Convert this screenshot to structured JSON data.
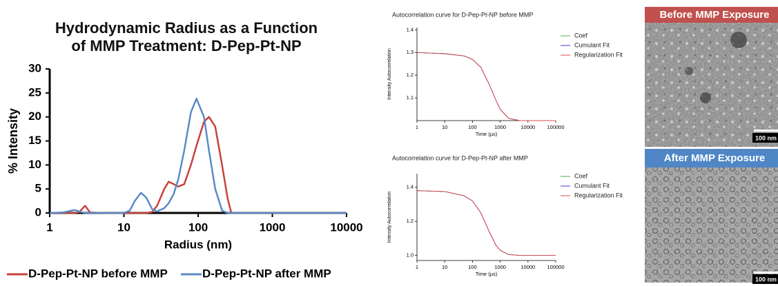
{
  "chart_data": [
    {
      "type": "line",
      "title": "Hydrodynamic Radius as a Function of MMP Treatment: D-Pep-Pt-NP",
      "xlabel": "Radius (nm)",
      "ylabel": "% Intensity",
      "xscale": "log",
      "legend": "bottom",
      "x": [
        1,
        1.5,
        2,
        2.2,
        2.5,
        3,
        3.5,
        5,
        10,
        12,
        14,
        17,
        20,
        24,
        28,
        35,
        40,
        47,
        54,
        65,
        80,
        95,
        120,
        140,
        170,
        210,
        250,
        280,
        400,
        1000,
        10000
      ],
      "series": [
        {
          "name": "D-Pep-Pt-NP before MMP",
          "color": "#c8413c",
          "values": [
            0,
            0,
            0,
            0,
            0.2,
            1.5,
            0.1,
            0,
            0,
            0,
            0,
            0,
            0,
            0.2,
            1.5,
            5,
            6.5,
            6,
            5.5,
            6,
            10,
            14,
            19,
            20,
            18,
            10,
            3,
            0,
            0,
            0,
            0
          ]
        },
        {
          "name": "D-Pep-Pt-NP after MMP",
          "color": "#5a8ac6",
          "values": [
            0,
            0.1,
            0.5,
            0.6,
            0.3,
            0,
            0,
            0,
            0,
            0.5,
            2.5,
            4.2,
            3.2,
            0.8,
            0.3,
            1,
            2,
            4,
            7,
            13,
            21,
            23.8,
            20,
            13,
            5,
            0.5,
            0,
            0,
            0,
            0,
            0
          ]
        }
      ],
      "xlim": [
        1,
        10000
      ],
      "xticks": [
        1,
        10,
        100,
        1000,
        10000
      ],
      "ylim": [
        0,
        30
      ],
      "yticks": [
        0,
        5,
        10,
        15,
        20,
        25,
        30
      ]
    },
    {
      "type": "line",
      "title": "Autocorrelation curve for D-Pep-Pt-NP before MMP",
      "xlabel": "Time (µs)",
      "ylabel": "Intensity Autocorrelation",
      "xscale": "log",
      "legend": "right",
      "x": [
        1,
        10,
        50,
        100,
        200,
        400,
        700,
        1000,
        2000,
        5000,
        10000,
        100000
      ],
      "series": [
        {
          "name": "Coef",
          "color": "#4caf50",
          "values": [
            1.3,
            1.295,
            1.285,
            1.27,
            1.235,
            1.16,
            1.09,
            1.05,
            1.01,
            1.0,
            1.0,
            1.0
          ]
        },
        {
          "name": "Cumulant Fit",
          "color": "#3b3fd8",
          "values": [
            1.3,
            1.295,
            1.285,
            1.27,
            1.235,
            1.16,
            1.09,
            1.05,
            1.01,
            1.0,
            1.0,
            1.0
          ]
        },
        {
          "name": "Regularization Fit",
          "color": "#e04848",
          "values": [
            1.3,
            1.295,
            1.285,
            1.27,
            1.235,
            1.16,
            1.09,
            1.05,
            1.01,
            1.0,
            1.0,
            1.0
          ]
        }
      ],
      "xlim": [
        1,
        100000
      ],
      "xticks": [
        1,
        10,
        100,
        1000,
        10000,
        100000
      ],
      "ylim": [
        1.0,
        1.41
      ],
      "yticks": [
        1.1,
        1.2,
        1.3,
        1.4
      ]
    },
    {
      "type": "line",
      "title": "Autocorrelation curve for D-Pep-Pt-NP after MMP",
      "xlabel": "Time (µs)",
      "ylabel": "Intensity Autocorrelation",
      "xscale": "log",
      "legend": "right",
      "x": [
        1,
        10,
        50,
        100,
        200,
        400,
        700,
        1000,
        2000,
        5000,
        10000,
        100000
      ],
      "series": [
        {
          "name": "Coef",
          "color": "#4caf50",
          "values": [
            1.38,
            1.375,
            1.35,
            1.32,
            1.25,
            1.14,
            1.06,
            1.03,
            1.005,
            1.0,
            1.0,
            1.0
          ]
        },
        {
          "name": "Cumulant Fit",
          "color": "#3b3fd8",
          "values": [
            1.38,
            1.375,
            1.35,
            1.32,
            1.25,
            1.14,
            1.06,
            1.03,
            1.005,
            1.0,
            1.0,
            1.0
          ]
        },
        {
          "name": "Regularization Fit",
          "color": "#e04848",
          "values": [
            1.38,
            1.375,
            1.35,
            1.32,
            1.25,
            1.14,
            1.06,
            1.03,
            1.005,
            1.0,
            1.0,
            1.0
          ]
        }
      ],
      "xlim": [
        1,
        100000
      ],
      "xticks": [
        1,
        10,
        100,
        1000,
        10000,
        100000
      ],
      "ylim": [
        0.97,
        1.48
      ],
      "yticks": [
        {
          "value": 1.0,
          "label": "1.0"
        },
        1.2,
        1.4
      ]
    }
  ],
  "micrographs": [
    {
      "label": "Before MMP Exposure",
      "scale_bar": "100 nm"
    },
    {
      "label": "After MMP Exposure",
      "scale_bar": "100 nm"
    }
  ]
}
